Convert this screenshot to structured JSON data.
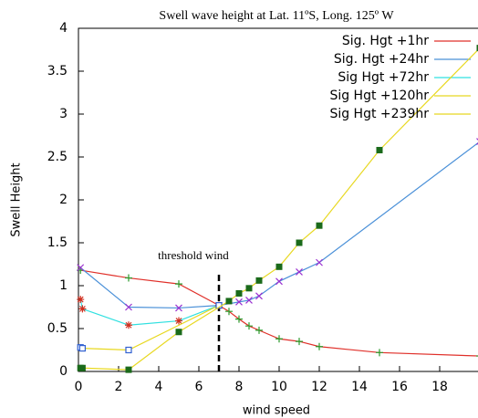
{
  "chart_data": {
    "type": "line",
    "title": "Swell wave height at Lat. 11ºS, Long. 125º W",
    "x_label": "wind speed",
    "y_label": "Swell Height",
    "xlim": [
      0,
      20
    ],
    "ylim": [
      0,
      4
    ],
    "xticks": [
      0,
      2,
      4,
      6,
      8,
      10,
      12,
      14,
      16,
      18
    ],
    "yticks": [
      0,
      0.5,
      1,
      1.5,
      2,
      2.5,
      3,
      3.5,
      4
    ],
    "grid": false,
    "legend": "top-right",
    "annotation": {
      "text": "threshold wind",
      "x": 7
    },
    "series": [
      {
        "name": "Sig. Hgt +1hr",
        "color": "#e0302a",
        "marker": "plus",
        "marker_color": "#2a9a2a",
        "x": [
          0.1,
          2.5,
          5,
          7,
          7.5,
          8,
          8.5,
          9,
          10,
          11,
          12,
          15,
          20
        ],
        "values": [
          1.18,
          1.09,
          1.02,
          0.77,
          0.7,
          0.61,
          0.53,
          0.48,
          0.38,
          0.35,
          0.29,
          0.22,
          0.18
        ]
      },
      {
        "name": "Sig. Hgt +24hr",
        "color": "#4a90d8",
        "marker": "cross",
        "marker_color": "#9a30d0",
        "x": [
          0.1,
          2.5,
          5,
          7,
          8,
          8.5,
          9,
          10,
          11,
          12,
          20
        ],
        "values": [
          1.21,
          0.75,
          0.74,
          0.77,
          0.81,
          0.83,
          0.88,
          1.05,
          1.16,
          1.27,
          2.68
        ]
      },
      {
        "name": "Sig Hgt +72hr",
        "color": "#30e0e0",
        "marker": "star",
        "marker_color": "#d03020",
        "x": [
          0.1,
          0.2,
          2.5,
          5,
          7
        ],
        "values": [
          0.84,
          0.73,
          0.54,
          0.59,
          0.77
        ]
      },
      {
        "name": "Sig Hgt +120hr",
        "color": "#e8d820",
        "marker": "open-square",
        "marker_color": "#3060d0",
        "x": [
          0.1,
          0.2,
          2.5,
          7
        ],
        "values": [
          0.28,
          0.27,
          0.25,
          0.77
        ]
      },
      {
        "name": "Sig Hgt +239hr",
        "color": "#e8d820",
        "marker": "square",
        "marker_color": "#1a6a1a",
        "x": [
          0.1,
          0.2,
          2.5,
          5,
          7.5,
          8,
          8.5,
          9,
          10,
          11,
          12,
          15,
          20
        ],
        "values": [
          0.04,
          0.04,
          0.02,
          0.46,
          0.82,
          0.91,
          0.97,
          1.06,
          1.22,
          1.5,
          1.7,
          2.58,
          3.77
        ]
      }
    ]
  }
}
